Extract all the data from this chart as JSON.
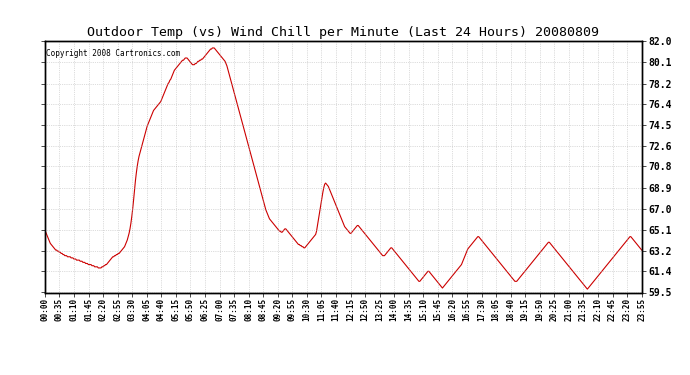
{
  "title": "Outdoor Temp (vs) Wind Chill per Minute (Last 24 Hours) 20080809",
  "copyright": "Copyright 2008 Cartronics.com",
  "line_color": "#cc0000",
  "background_color": "#ffffff",
  "grid_color": "#aaaaaa",
  "ylim": [
    59.5,
    82.0
  ],
  "yticks": [
    82.0,
    80.1,
    78.2,
    76.4,
    74.5,
    72.6,
    70.8,
    68.9,
    67.0,
    65.1,
    63.2,
    61.4,
    59.5
  ],
  "xtick_labels": [
    "00:00",
    "00:35",
    "01:10",
    "01:45",
    "02:20",
    "02:55",
    "03:30",
    "04:05",
    "04:40",
    "05:15",
    "05:50",
    "06:25",
    "07:00",
    "07:35",
    "08:10",
    "08:45",
    "09:20",
    "09:55",
    "10:30",
    "11:05",
    "11:40",
    "12:15",
    "12:50",
    "13:25",
    "14:00",
    "14:35",
    "15:10",
    "15:45",
    "16:20",
    "16:55",
    "17:30",
    "18:05",
    "18:40",
    "19:15",
    "19:50",
    "20:25",
    "21:00",
    "21:35",
    "22:10",
    "22:45",
    "23:20",
    "23:55"
  ],
  "temp_profile": [
    65.1,
    64.9,
    64.7,
    64.5,
    64.3,
    64.1,
    63.9,
    63.8,
    63.7,
    63.6,
    63.5,
    63.4,
    63.3,
    63.3,
    63.2,
    63.2,
    63.1,
    63.1,
    63.0,
    63.0,
    62.9,
    62.9,
    62.8,
    62.8,
    62.8,
    62.7,
    62.7,
    62.7,
    62.7,
    62.6,
    62.6,
    62.6,
    62.5,
    62.5,
    62.5,
    62.4,
    62.4,
    62.4,
    62.4,
    62.3,
    62.3,
    62.3,
    62.2,
    62.2,
    62.2,
    62.1,
    62.1,
    62.1,
    62.0,
    62.0,
    62.0,
    62.0,
    61.9,
    61.9,
    61.9,
    61.8,
    61.8,
    61.8,
    61.8,
    61.7,
    61.7,
    61.7,
    61.7,
    61.8,
    61.8,
    61.9,
    61.9,
    62.0,
    62.0,
    62.1,
    62.2,
    62.3,
    62.4,
    62.5,
    62.6,
    62.7,
    62.7,
    62.8,
    62.8,
    62.9,
    62.9,
    63.0,
    63.0,
    63.1,
    63.2,
    63.3,
    63.4,
    63.5,
    63.6,
    63.8,
    64.0,
    64.2,
    64.5,
    64.8,
    65.2,
    65.7,
    66.3,
    67.0,
    67.8,
    68.7,
    69.5,
    70.2,
    70.8,
    71.3,
    71.7,
    72.0,
    72.3,
    72.6,
    72.9,
    73.2,
    73.5,
    73.8,
    74.1,
    74.4,
    74.6,
    74.8,
    75.0,
    75.2,
    75.4,
    75.6,
    75.8,
    75.9,
    76.0,
    76.1,
    76.2,
    76.3,
    76.4,
    76.5,
    76.6,
    76.8,
    77.0,
    77.2,
    77.4,
    77.6,
    77.8,
    78.0,
    78.2,
    78.3,
    78.5,
    78.6,
    78.8,
    79.0,
    79.2,
    79.4,
    79.5,
    79.6,
    79.7,
    79.8,
    79.9,
    80.0,
    80.1,
    80.2,
    80.3,
    80.3,
    80.4,
    80.5,
    80.5,
    80.5,
    80.4,
    80.3,
    80.2,
    80.1,
    80.0,
    79.9,
    79.9,
    79.9,
    80.0,
    80.0,
    80.1,
    80.2,
    80.2,
    80.3,
    80.3,
    80.4,
    80.4,
    80.5,
    80.6,
    80.7,
    80.8,
    80.9,
    81.0,
    81.1,
    81.2,
    81.3,
    81.3,
    81.4,
    81.4,
    81.4,
    81.3,
    81.2,
    81.1,
    81.0,
    80.9,
    80.8,
    80.7,
    80.6,
    80.5,
    80.4,
    80.3,
    80.2,
    80.0,
    79.8,
    79.5,
    79.2,
    78.9,
    78.6,
    78.3,
    78.0,
    77.7,
    77.4,
    77.1,
    76.8,
    76.5,
    76.2,
    75.9,
    75.6,
    75.3,
    75.0,
    74.7,
    74.4,
    74.1,
    73.8,
    73.5,
    73.2,
    72.9,
    72.6,
    72.3,
    72.0,
    71.7,
    71.4,
    71.1,
    70.8,
    70.5,
    70.2,
    69.9,
    69.6,
    69.3,
    69.0,
    68.7,
    68.4,
    68.1,
    67.8,
    67.5,
    67.2,
    66.9,
    66.7,
    66.5,
    66.3,
    66.1,
    66.0,
    65.9,
    65.8,
    65.7,
    65.6,
    65.5,
    65.4,
    65.3,
    65.2,
    65.1,
    65.0,
    65.0,
    64.9,
    64.9,
    65.0,
    65.1,
    65.2,
    65.2,
    65.1,
    65.0,
    64.9,
    64.8,
    64.7,
    64.6,
    64.5,
    64.4,
    64.3,
    64.2,
    64.1,
    64.0,
    63.9,
    63.8,
    63.8,
    63.7,
    63.7,
    63.6,
    63.6,
    63.5,
    63.5,
    63.6,
    63.7,
    63.8,
    63.9,
    64.0,
    64.1,
    64.2,
    64.3,
    64.4,
    64.5,
    64.6,
    64.7,
    65.0,
    65.5,
    66.0,
    66.5,
    67.0,
    67.5,
    68.0,
    68.5,
    68.9,
    69.2,
    69.3,
    69.2,
    69.1,
    69.0,
    68.8,
    68.6,
    68.4,
    68.2,
    68.0,
    67.8,
    67.6,
    67.4,
    67.2,
    67.0,
    66.8,
    66.6,
    66.4,
    66.2,
    66.0,
    65.8,
    65.6,
    65.4,
    65.3,
    65.2,
    65.1,
    65.0,
    64.9,
    64.8,
    64.8,
    64.9,
    65.0,
    65.1,
    65.2,
    65.3,
    65.4,
    65.5,
    65.5,
    65.4,
    65.3,
    65.2,
    65.1,
    65.0,
    64.9,
    64.8,
    64.7,
    64.6,
    64.5,
    64.4,
    64.3,
    64.2,
    64.1,
    64.0,
    63.9,
    63.8,
    63.7,
    63.6,
    63.5,
    63.4,
    63.3,
    63.2,
    63.1,
    63.0,
    62.9,
    62.8,
    62.8,
    62.8,
    62.9,
    63.0,
    63.1,
    63.2,
    63.3,
    63.4,
    63.5,
    63.5,
    63.4,
    63.3,
    63.2,
    63.1,
    63.0,
    62.9,
    62.8,
    62.7,
    62.6,
    62.5,
    62.4,
    62.3,
    62.2,
    62.1,
    62.0,
    61.9,
    61.8,
    61.7,
    61.6,
    61.5,
    61.4,
    61.3,
    61.2,
    61.1,
    61.0,
    60.9,
    60.8,
    60.7,
    60.6,
    60.5,
    60.5,
    60.6,
    60.7,
    60.8,
    60.9,
    61.0,
    61.1,
    61.2,
    61.3,
    61.4,
    61.4,
    61.3,
    61.2,
    61.1,
    61.0,
    60.9,
    60.8,
    60.7,
    60.6,
    60.5,
    60.4,
    60.3,
    60.2,
    60.1,
    60.0,
    59.9,
    60.0,
    60.1,
    60.2,
    60.3,
    60.4,
    60.5,
    60.6,
    60.7,
    60.8,
    60.9,
    61.0,
    61.1,
    61.2,
    61.3,
    61.4,
    61.5,
    61.6,
    61.7,
    61.8,
    61.9,
    62.0,
    62.2,
    62.4,
    62.6,
    62.8,
    63.0,
    63.2,
    63.4,
    63.5,
    63.6,
    63.7,
    63.8,
    63.9,
    64.0,
    64.1,
    64.2,
    64.3,
    64.4,
    64.5,
    64.5,
    64.4,
    64.3,
    64.2,
    64.1,
    64.0,
    63.9,
    63.8,
    63.7,
    63.6,
    63.5,
    63.4,
    63.3,
    63.2,
    63.1,
    63.0,
    62.9,
    62.8,
    62.7,
    62.6,
    62.5,
    62.4,
    62.3,
    62.2,
    62.1,
    62.0,
    61.9,
    61.8,
    61.7,
    61.6,
    61.5,
    61.4,
    61.3,
    61.2,
    61.1,
    61.0,
    60.9,
    60.8,
    60.7,
    60.6,
    60.5,
    60.5,
    60.5,
    60.6,
    60.7,
    60.8,
    60.9,
    61.0,
    61.1,
    61.2,
    61.3,
    61.4,
    61.5,
    61.6,
    61.7,
    61.8,
    61.9,
    62.0,
    62.1,
    62.2,
    62.3,
    62.4,
    62.5,
    62.6,
    62.7,
    62.8,
    62.9,
    63.0,
    63.1,
    63.2,
    63.3,
    63.4,
    63.5,
    63.6,
    63.7,
    63.8,
    63.9,
    64.0,
    64.0,
    63.9,
    63.8,
    63.7,
    63.6,
    63.5,
    63.4,
    63.3,
    63.2,
    63.1,
    63.0,
    62.9,
    62.8,
    62.7,
    62.6,
    62.5,
    62.4,
    62.3,
    62.2,
    62.1,
    62.0,
    61.9,
    61.8,
    61.7,
    61.6,
    61.5,
    61.4,
    61.3,
    61.2,
    61.1,
    61.0,
    60.9,
    60.8,
    60.7,
    60.6,
    60.5,
    60.4,
    60.3,
    60.2,
    60.1,
    60.0,
    59.9,
    59.8,
    59.9,
    60.0,
    60.1,
    60.2,
    60.3,
    60.4,
    60.5,
    60.6,
    60.7,
    60.8,
    60.9,
    61.0,
    61.1,
    61.2,
    61.3,
    61.4,
    61.5,
    61.6,
    61.7,
    61.8,
    61.9,
    62.0,
    62.1,
    62.2,
    62.3,
    62.4,
    62.5,
    62.6,
    62.7,
    62.8,
    62.9,
    63.0,
    63.1,
    63.2,
    63.3,
    63.4,
    63.5,
    63.6,
    63.7,
    63.8,
    63.9,
    64.0,
    64.1,
    64.2,
    64.3,
    64.4,
    64.5,
    64.5,
    64.4,
    64.3,
    64.2,
    64.1,
    64.0,
    63.9,
    63.8,
    63.7,
    63.6,
    63.5,
    63.4,
    63.3
  ]
}
